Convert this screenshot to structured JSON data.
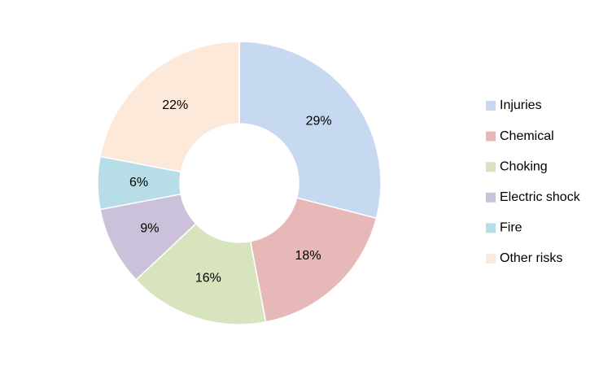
{
  "chart_data": {
    "type": "donut",
    "categories": [
      "Injuries",
      "Chemical",
      "Choking",
      "Electric shock",
      "Fire",
      "Other risks"
    ],
    "series": [
      {
        "values": [
          29,
          18,
          16,
          9,
          6,
          22
        ],
        "value_labels": [
          "29%",
          "18%",
          "16%",
          "9%",
          "6%",
          "22%"
        ],
        "colors": [
          "#c6d9f1",
          "#e6b9b8",
          "#d7e4bd",
          "#ccc1da",
          "#b7dee8",
          "#fde9d9"
        ]
      }
    ],
    "legend": "right"
  }
}
